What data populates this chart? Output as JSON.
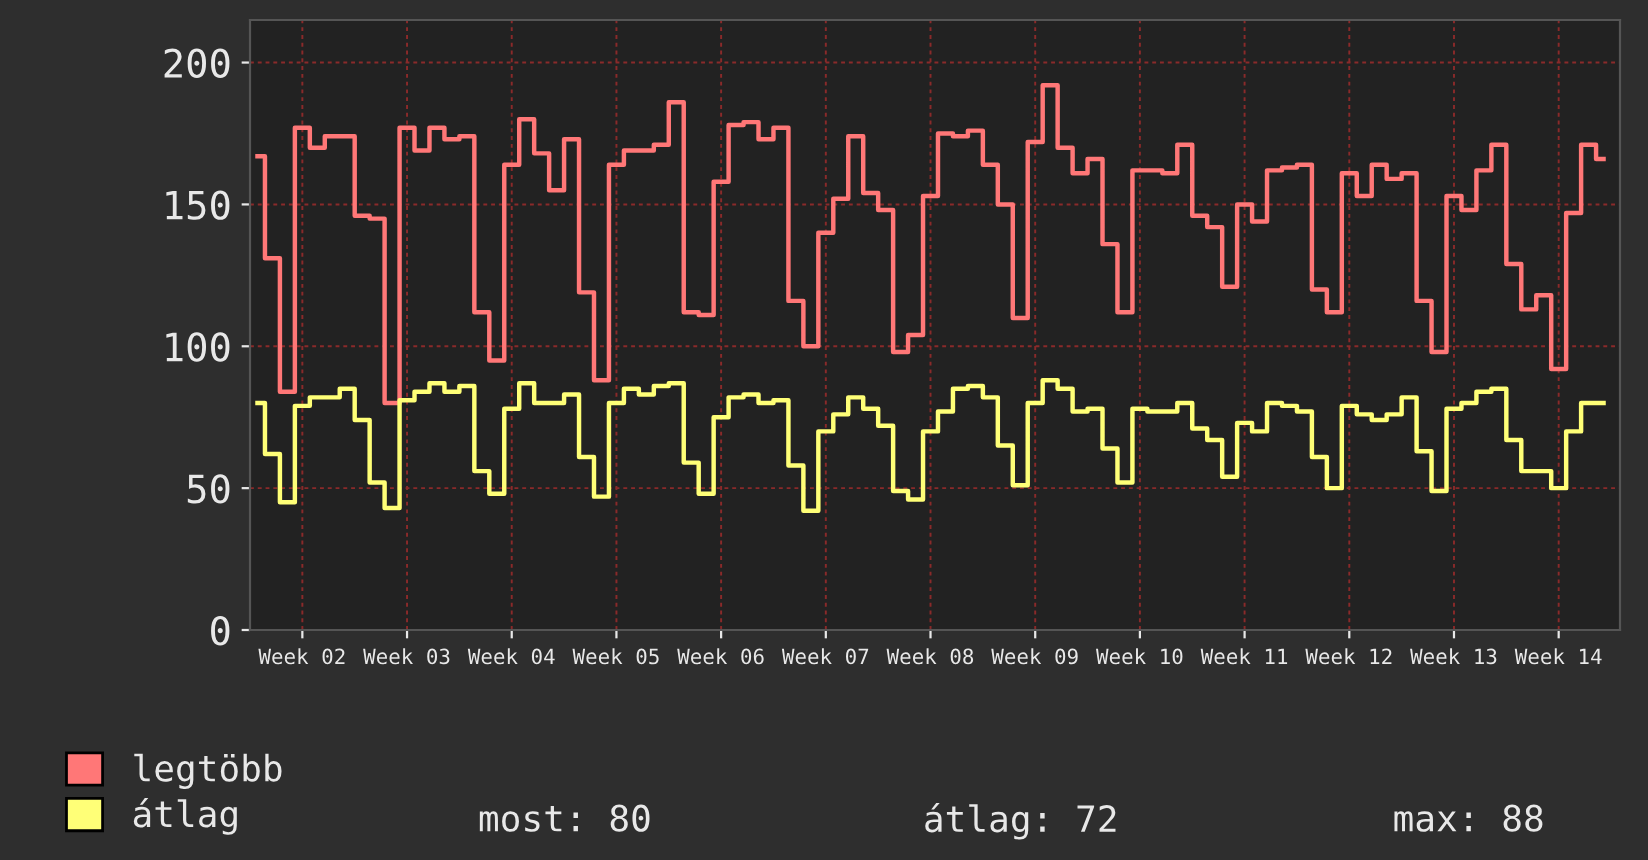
{
  "chart_data": {
    "type": "step",
    "categories": [
      null,
      null,
      null,
      "Week 02",
      null,
      null,
      null,
      null,
      null,
      null,
      "Week 03",
      null,
      null,
      null,
      null,
      null,
      null,
      "Week 04",
      null,
      null,
      null,
      null,
      null,
      null,
      "Week 05",
      null,
      null,
      null,
      null,
      null,
      null,
      "Week 06",
      null,
      null,
      null,
      null,
      null,
      null,
      "Week 07",
      null,
      null,
      null,
      null,
      null,
      null,
      "Week 08",
      null,
      null,
      null,
      null,
      null,
      null,
      "Week 09",
      null,
      null,
      null,
      null,
      null,
      null,
      "Week 10",
      null,
      null,
      null,
      null,
      null,
      null,
      "Week 11",
      null,
      null,
      null,
      null,
      null,
      null,
      "Week 12",
      null,
      null,
      null,
      null,
      null,
      null,
      "Week 13",
      null,
      null,
      null,
      null,
      null,
      null,
      "Week 14",
      null,
      null,
      null
    ],
    "series": [
      {
        "name": "legtöbb",
        "color": "#ff7777",
        "values": [
          167,
          131,
          84,
          177,
          170,
          174,
          174,
          146,
          145,
          80,
          177,
          169,
          177,
          173,
          174,
          112,
          95,
          164,
          180,
          168,
          155,
          173,
          119,
          88,
          164,
          169,
          169,
          171,
          186,
          112,
          111,
          158,
          178,
          179,
          173,
          177,
          116,
          100,
          140,
          152,
          174,
          154,
          148,
          98,
          104,
          153,
          175,
          174,
          176,
          164,
          150,
          110,
          172,
          192,
          170,
          161,
          166,
          136,
          112,
          162,
          162,
          161,
          171,
          146,
          142,
          121,
          150,
          144,
          162,
          163,
          164,
          120,
          112,
          161,
          153,
          164,
          159,
          161,
          116,
          98,
          153,
          148,
          162,
          171,
          129,
          113,
          118,
          92,
          147,
          171,
          166
        ]
      },
      {
        "name": "átlag",
        "color": "#ffff77",
        "values": [
          80,
          62,
          45,
          79,
          82,
          82,
          85,
          74,
          52,
          43,
          81,
          84,
          87,
          84,
          86,
          56,
          48,
          78,
          87,
          80,
          80,
          83,
          61,
          47,
          80,
          85,
          83,
          86,
          87,
          59,
          48,
          75,
          82,
          83,
          80,
          81,
          58,
          42,
          70,
          76,
          82,
          78,
          72,
          49,
          46,
          70,
          77,
          85,
          86,
          82,
          65,
          51,
          80,
          88,
          85,
          77,
          78,
          64,
          52,
          78,
          77,
          77,
          80,
          71,
          67,
          54,
          73,
          70,
          80,
          79,
          77,
          61,
          50,
          79,
          76,
          74,
          76,
          82,
          63,
          49,
          78,
          80,
          84,
          85,
          67,
          56,
          56,
          50,
          70,
          80,
          80
        ]
      }
    ],
    "ylim": [
      0,
      215
    ],
    "yticks": [
      0,
      50,
      100,
      150,
      200
    ],
    "grid": true,
    "legend": "bottom left",
    "annotations": [
      "most: 80",
      "átlag: 72",
      "max: 88"
    ]
  }
}
